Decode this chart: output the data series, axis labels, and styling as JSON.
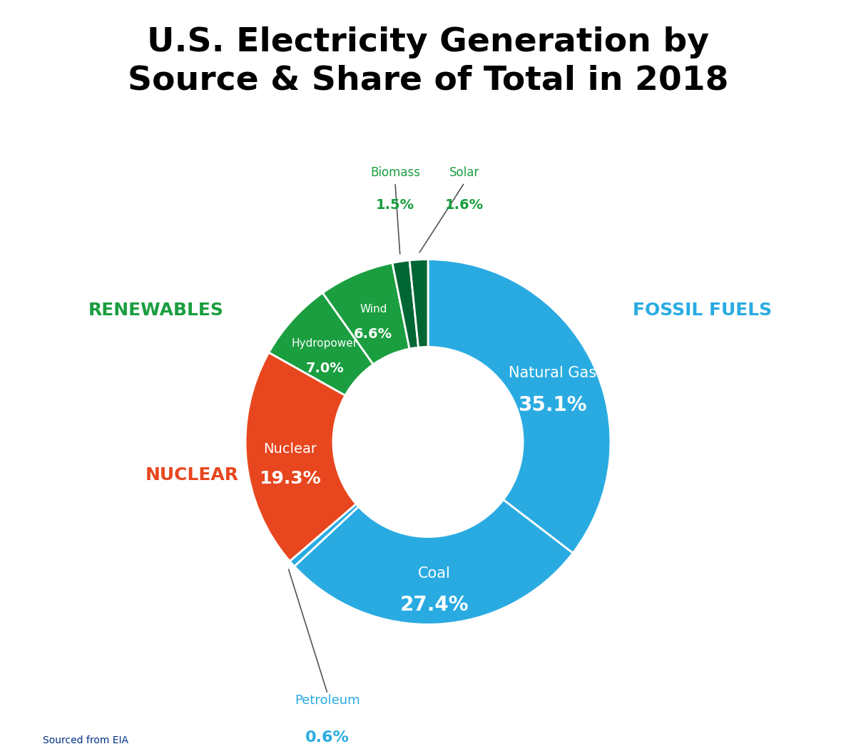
{
  "title": "U.S. Electricity Generation by\nSource & Share of Total in 2018",
  "title_fontsize": 34,
  "title_fontweight": "bold",
  "source_text": "Sourced from EIA",
  "slices": [
    {
      "label": "Natural Gas",
      "pct": 35.1,
      "color": "#29ABE2",
      "text_color": "white",
      "group": "fossil"
    },
    {
      "label": "Coal",
      "pct": 27.4,
      "color": "#29ABE2",
      "text_color": "white",
      "group": "fossil"
    },
    {
      "label": "Petroleum",
      "pct": 0.6,
      "color": "#29ABE2",
      "text_color": "#29ABE2",
      "group": "fossil"
    },
    {
      "label": "Nuclear",
      "pct": 19.3,
      "color": "#E8461E",
      "text_color": "white",
      "group": "nuclear"
    },
    {
      "label": "Hydropower",
      "pct": 7.0,
      "color": "#1A9E3F",
      "text_color": "white",
      "group": "renewables"
    },
    {
      "label": "Wind",
      "pct": 6.6,
      "color": "#1A9E3F",
      "text_color": "white",
      "group": "renewables"
    },
    {
      "label": "Biomass",
      "pct": 1.5,
      "color": "#006633",
      "text_color": "#1A9E3F",
      "group": "renewables"
    },
    {
      "label": "Solar",
      "pct": 1.6,
      "color": "#006633",
      "text_color": "#1A9E3F",
      "group": "renewables"
    }
  ],
  "wedge_edge_color": "white",
  "wedge_linewidth": 2.0,
  "background_color": "#ffffff",
  "fossil_fuels_label_color": "#29ABE2",
  "renewables_label_color": "#1A9E3F",
  "nuclear_label_color": "#E8461E",
  "source_color": "#003087",
  "annotation_line_color": "#555555"
}
